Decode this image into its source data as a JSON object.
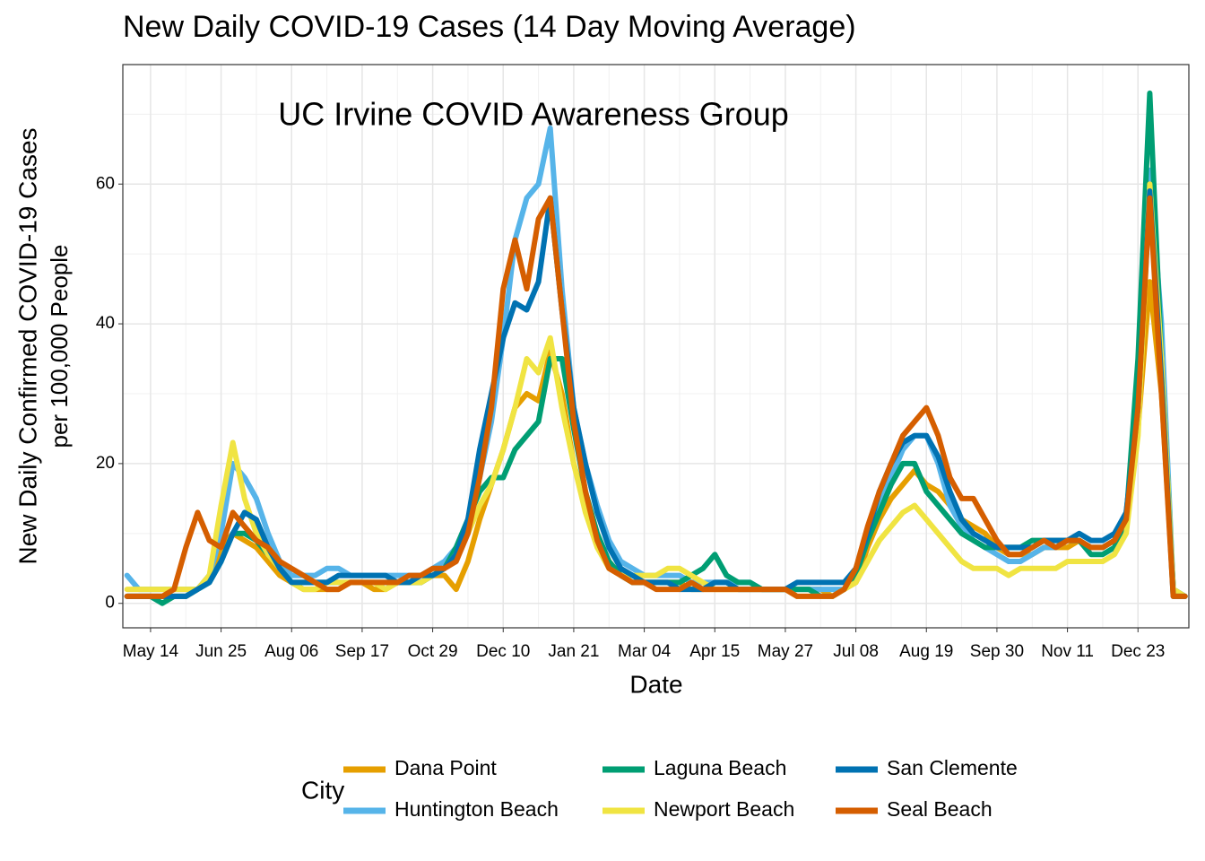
{
  "chart_data": {
    "type": "line",
    "title": "New Daily COVID-19 Cases (14 Day Moving Average)",
    "annotation": "UC Irvine COVID Awareness Group",
    "x_label": "Date",
    "y_label": [
      "New Daily Confirmed COVID-19 Cases",
      "per 100,000 People"
    ],
    "legend_title": "City",
    "legend": "bottom",
    "grid": true,
    "categories": [
      null,
      null,
      "May 14",
      null,
      null,
      null,
      null,
      null,
      "Jun 25",
      null,
      null,
      null,
      null,
      null,
      "Aug 06",
      null,
      null,
      null,
      null,
      null,
      "Sep 17",
      null,
      null,
      null,
      null,
      null,
      "Oct 29",
      null,
      null,
      null,
      null,
      null,
      "Dec 10",
      null,
      null,
      null,
      null,
      null,
      "Jan 21",
      null,
      null,
      null,
      null,
      null,
      "Mar 04",
      null,
      null,
      null,
      null,
      null,
      "Apr 15",
      null,
      null,
      null,
      null,
      null,
      "May 27",
      null,
      null,
      null,
      null,
      null,
      "Jul 08",
      null,
      null,
      null,
      null,
      null,
      "Aug 19",
      null,
      null,
      null,
      null,
      null,
      "Sep 30",
      null,
      null,
      null,
      null,
      null,
      "Nov 11",
      null,
      null,
      null,
      null,
      null,
      "Dec 23",
      null,
      null,
      null,
      null
    ],
    "ylim": [
      -3.5,
      77.1
    ],
    "yticks": [
      0,
      20,
      40,
      60
    ],
    "series": [
      {
        "name": "Dana Point",
        "color": "#E69F00",
        "values": [
          1,
          1,
          1,
          1,
          1,
          1,
          2,
          4,
          8,
          10,
          9,
          8,
          6,
          4,
          3,
          2,
          2,
          2,
          2,
          3,
          3,
          2,
          2,
          3,
          3,
          3,
          4,
          4,
          2,
          6,
          12,
          17,
          22,
          28,
          30,
          29,
          36,
          30,
          20,
          14,
          9,
          6,
          4,
          3,
          3,
          3,
          3,
          3,
          2,
          2,
          2,
          2,
          2,
          2,
          2,
          2,
          2,
          2,
          2,
          2,
          1,
          2,
          3,
          8,
          12,
          15,
          17,
          19,
          17,
          16,
          14,
          12,
          11,
          10,
          8,
          7,
          7,
          7,
          8,
          8,
          8,
          9,
          8,
          8,
          9,
          12,
          25,
          46,
          30,
          2,
          1
        ]
      },
      {
        "name": "Huntington Beach",
        "color": "#56B4E9",
        "values": [
          4,
          2,
          2,
          2,
          2,
          2,
          2,
          4,
          10,
          20,
          18,
          15,
          10,
          6,
          4,
          4,
          4,
          5,
          5,
          4,
          4,
          4,
          4,
          4,
          4,
          4,
          5,
          6,
          8,
          12,
          18,
          26,
          38,
          52,
          58,
          60,
          68,
          45,
          28,
          20,
          14,
          9,
          6,
          5,
          4,
          4,
          4,
          4,
          3,
          3,
          3,
          3,
          3,
          3,
          2,
          2,
          2,
          2,
          2,
          2,
          2,
          2,
          4,
          10,
          15,
          18,
          22,
          24,
          24,
          20,
          14,
          11,
          9,
          8,
          7,
          6,
          6,
          7,
          8,
          8,
          9,
          9,
          8,
          8,
          9,
          13,
          28,
          62,
          40,
          2,
          1
        ]
      },
      {
        "name": "Laguna Beach",
        "color": "#009E73",
        "values": [
          1,
          1,
          1,
          0,
          1,
          1,
          2,
          3,
          6,
          10,
          10,
          9,
          7,
          5,
          3,
          3,
          3,
          3,
          3,
          3,
          3,
          3,
          3,
          3,
          3,
          3,
          4,
          5,
          8,
          12,
          16,
          18,
          18,
          22,
          24,
          26,
          35,
          35,
          25,
          16,
          10,
          6,
          4,
          3,
          3,
          3,
          3,
          3,
          4,
          5,
          7,
          4,
          3,
          3,
          2,
          2,
          2,
          2,
          2,
          1,
          1,
          2,
          4,
          9,
          13,
          17,
          20,
          20,
          16,
          14,
          12,
          10,
          9,
          8,
          8,
          8,
          8,
          9,
          9,
          9,
          9,
          9,
          7,
          7,
          8,
          12,
          35,
          73,
          35,
          2,
          1
        ]
      },
      {
        "name": "Newport Beach",
        "color": "#F0E442",
        "values": [
          2,
          2,
          2,
          2,
          2,
          2,
          2,
          4,
          14,
          23,
          15,
          10,
          7,
          5,
          3,
          2,
          2,
          3,
          3,
          3,
          3,
          3,
          2,
          3,
          3,
          3,
          4,
          5,
          7,
          10,
          14,
          17,
          22,
          28,
          35,
          33,
          38,
          28,
          20,
          13,
          8,
          5,
          4,
          4,
          4,
          4,
          5,
          5,
          4,
          3,
          2,
          2,
          2,
          2,
          2,
          2,
          2,
          1,
          1,
          1,
          1,
          2,
          3,
          6,
          9,
          11,
          13,
          14,
          12,
          10,
          8,
          6,
          5,
          5,
          5,
          4,
          5,
          5,
          5,
          5,
          6,
          6,
          6,
          6,
          7,
          10,
          24,
          60,
          35,
          2,
          1
        ]
      },
      {
        "name": "San Clemente",
        "color": "#0072B2",
        "values": [
          1,
          1,
          1,
          1,
          1,
          1,
          2,
          3,
          6,
          10,
          13,
          12,
          8,
          5,
          3,
          3,
          3,
          3,
          4,
          4,
          4,
          4,
          4,
          3,
          3,
          4,
          4,
          5,
          7,
          12,
          22,
          30,
          38,
          43,
          42,
          46,
          58,
          42,
          28,
          20,
          13,
          8,
          5,
          4,
          3,
          3,
          3,
          2,
          2,
          2,
          3,
          3,
          2,
          2,
          2,
          2,
          2,
          3,
          3,
          3,
          3,
          3,
          5,
          10,
          16,
          20,
          23,
          24,
          24,
          21,
          16,
          12,
          10,
          9,
          8,
          8,
          8,
          8,
          9,
          9,
          9,
          10,
          9,
          9,
          10,
          13,
          28,
          59,
          32,
          1,
          1
        ]
      },
      {
        "name": "Seal Beach",
        "color": "#D55E00",
        "values": [
          1,
          1,
          1,
          1,
          2,
          8,
          13,
          9,
          8,
          13,
          11,
          9,
          8,
          6,
          5,
          4,
          3,
          2,
          2,
          3,
          3,
          3,
          3,
          3,
          4,
          4,
          5,
          5,
          6,
          10,
          18,
          28,
          45,
          52,
          45,
          55,
          58,
          42,
          26,
          16,
          9,
          5,
          4,
          3,
          3,
          2,
          2,
          2,
          3,
          2,
          2,
          2,
          2,
          2,
          2,
          2,
          2,
          1,
          1,
          1,
          1,
          2,
          5,
          11,
          16,
          20,
          24,
          26,
          28,
          24,
          18,
          15,
          15,
          12,
          9,
          7,
          7,
          8,
          9,
          8,
          9,
          9,
          8,
          8,
          9,
          12,
          28,
          58,
          30,
          1,
          1
        ]
      }
    ]
  }
}
